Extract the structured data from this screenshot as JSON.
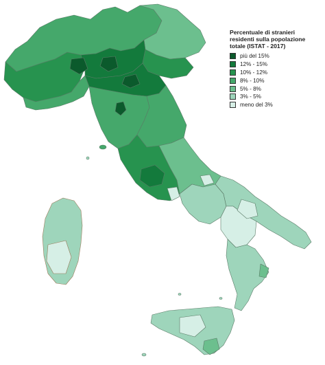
{
  "legend": {
    "title_lines": [
      "Percentuale di stranieri",
      "residenti sulla popolazione",
      "totale (ISTAT - 2017)"
    ],
    "classes": [
      {
        "label": "più del 15%",
        "color": "#0b5a2c"
      },
      {
        "label": "12% - 15%",
        "color": "#137a3c"
      },
      {
        "label": "10% - 12%",
        "color": "#27934f"
      },
      {
        "label": "8% - 10%",
        "color": "#45a86b"
      },
      {
        "label": "5% - 8%",
        "color": "#6cbf8e"
      },
      {
        "label": "3% - 5%",
        "color": "#9ed5bb"
      },
      {
        "label": "meno del 3%",
        "color": "#d6efe6"
      }
    ]
  },
  "colors": {
    "border": "#5a7a66",
    "sardinia_border": "#9a7a5a",
    "background": "#ffffff"
  }
}
